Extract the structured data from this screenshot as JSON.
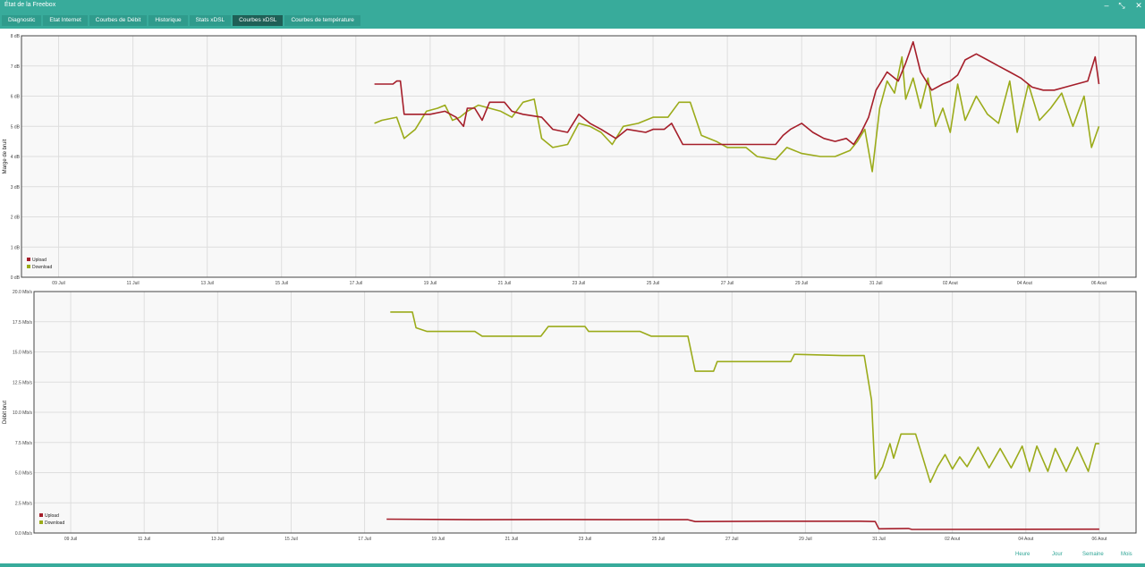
{
  "window": {
    "title": "État de la Freebox"
  },
  "tabs": [
    "Diagnostic",
    "Etat Internet",
    "Courbes de Débit",
    "Historique",
    "Stats xDSL",
    "Courbes xDSL",
    "Courbes de température"
  ],
  "active_tab": 5,
  "range_buttons": [
    "Heure",
    "Jour",
    "Semaine",
    "Mois"
  ],
  "colors": {
    "upload": "#a51e2a",
    "download": "#9bab1a",
    "accent": "#38ab9b"
  },
  "chart_data": [
    {
      "type": "line",
      "ylabel": "Marge de bruit",
      "ylim": [
        0,
        8
      ],
      "yticks": [
        "0 dB",
        "1 dB",
        "2 dB",
        "3 dB",
        "4 dB",
        "5 dB",
        "6 dB",
        "7 dB",
        "8 dB"
      ],
      "x_tick_labels": [
        "09 Juil",
        "11 Juil",
        "13 Juil",
        "15 Juil",
        "17 Juil",
        "19 Juil",
        "21 Juil",
        "23 Juil",
        "25 Juil",
        "27 Juil",
        "29 Juil",
        "31 Juil",
        "02 Aout",
        "04 Aout",
        "06 Aout"
      ],
      "legend_position": "bottom-left",
      "grid": true,
      "series": [
        {
          "name": "Upload",
          "color": "#a51e2a",
          "points": [
            [
              17.5,
              6.4
            ],
            [
              18.0,
              6.4
            ],
            [
              18.1,
              6.5
            ],
            [
              18.2,
              6.5
            ],
            [
              18.3,
              5.4
            ],
            [
              19.0,
              5.4
            ],
            [
              19.4,
              5.5
            ],
            [
              19.7,
              5.3
            ],
            [
              19.9,
              5.0
            ],
            [
              20.0,
              5.6
            ],
            [
              20.2,
              5.6
            ],
            [
              20.4,
              5.2
            ],
            [
              20.6,
              5.8
            ],
            [
              21.0,
              5.8
            ],
            [
              21.2,
              5.5
            ],
            [
              21.5,
              5.4
            ],
            [
              22.0,
              5.3
            ],
            [
              22.3,
              4.9
            ],
            [
              22.7,
              4.8
            ],
            [
              23.0,
              5.4
            ],
            [
              23.3,
              5.1
            ],
            [
              23.6,
              4.9
            ],
            [
              24.0,
              4.6
            ],
            [
              24.3,
              4.9
            ],
            [
              24.8,
              4.8
            ],
            [
              25.0,
              4.9
            ],
            [
              25.3,
              4.9
            ],
            [
              25.5,
              5.1
            ],
            [
              25.8,
              4.4
            ],
            [
              26.5,
              4.4
            ],
            [
              27.0,
              4.4
            ],
            [
              27.5,
              4.4
            ],
            [
              28.0,
              4.4
            ],
            [
              28.3,
              4.4
            ],
            [
              28.5,
              4.7
            ],
            [
              28.7,
              4.9
            ],
            [
              29.0,
              5.1
            ],
            [
              29.3,
              4.8
            ],
            [
              29.6,
              4.6
            ],
            [
              29.9,
              4.5
            ],
            [
              30.2,
              4.6
            ],
            [
              30.4,
              4.4
            ],
            [
              30.6,
              4.8
            ],
            [
              30.8,
              5.3
            ],
            [
              31.0,
              6.2
            ],
            [
              31.3,
              6.8
            ],
            [
              31.6,
              6.5
            ],
            [
              31.8,
              7.1
            ],
            [
              32.0,
              7.8
            ],
            [
              32.2,
              6.8
            ],
            [
              32.5,
              6.2
            ],
            [
              32.8,
              6.4
            ],
            [
              33.0,
              6.5
            ],
            [
              33.2,
              6.7
            ],
            [
              33.4,
              7.2
            ],
            [
              33.7,
              7.4
            ],
            [
              34.0,
              7.2
            ],
            [
              34.3,
              7.0
            ],
            [
              34.6,
              6.8
            ],
            [
              34.9,
              6.6
            ],
            [
              35.2,
              6.3
            ],
            [
              35.5,
              6.2
            ],
            [
              35.8,
              6.2
            ],
            [
              36.1,
              6.3
            ],
            [
              36.4,
              6.4
            ],
            [
              36.7,
              6.5
            ],
            [
              36.9,
              7.3
            ],
            [
              37.0,
              6.4
            ]
          ]
        },
        {
          "name": "Download",
          "color": "#9bab1a",
          "points": [
            [
              17.5,
              5.1
            ],
            [
              17.7,
              5.2
            ],
            [
              18.1,
              5.3
            ],
            [
              18.3,
              4.6
            ],
            [
              18.6,
              4.9
            ],
            [
              18.9,
              5.5
            ],
            [
              19.2,
              5.6
            ],
            [
              19.4,
              5.7
            ],
            [
              19.6,
              5.2
            ],
            [
              19.8,
              5.3
            ],
            [
              20.0,
              5.5
            ],
            [
              20.3,
              5.7
            ],
            [
              20.6,
              5.6
            ],
            [
              20.9,
              5.5
            ],
            [
              21.2,
              5.3
            ],
            [
              21.5,
              5.8
            ],
            [
              21.8,
              5.9
            ],
            [
              22.0,
              4.6
            ],
            [
              22.3,
              4.3
            ],
            [
              22.7,
              4.4
            ],
            [
              23.0,
              5.1
            ],
            [
              23.3,
              5.0
            ],
            [
              23.6,
              4.8
            ],
            [
              23.9,
              4.4
            ],
            [
              24.2,
              5.0
            ],
            [
              24.6,
              5.1
            ],
            [
              25.0,
              5.3
            ],
            [
              25.4,
              5.3
            ],
            [
              25.7,
              5.8
            ],
            [
              26.0,
              5.8
            ],
            [
              26.3,
              4.7
            ],
            [
              26.7,
              4.5
            ],
            [
              27.0,
              4.3
            ],
            [
              27.5,
              4.3
            ],
            [
              27.8,
              4.0
            ],
            [
              28.3,
              3.9
            ],
            [
              28.6,
              4.3
            ],
            [
              29.0,
              4.1
            ],
            [
              29.5,
              4.0
            ],
            [
              29.9,
              4.0
            ],
            [
              30.3,
              4.2
            ],
            [
              30.5,
              4.5
            ],
            [
              30.7,
              4.9
            ],
            [
              30.9,
              3.5
            ],
            [
              31.1,
              5.6
            ],
            [
              31.3,
              6.5
            ],
            [
              31.5,
              6.1
            ],
            [
              31.7,
              7.3
            ],
            [
              31.8,
              5.9
            ],
            [
              32.0,
              6.6
            ],
            [
              32.2,
              5.6
            ],
            [
              32.4,
              6.6
            ],
            [
              32.6,
              5.0
            ],
            [
              32.8,
              5.6
            ],
            [
              33.0,
              4.8
            ],
            [
              33.2,
              6.4
            ],
            [
              33.4,
              5.2
            ],
            [
              33.7,
              6.0
            ],
            [
              34.0,
              5.4
            ],
            [
              34.3,
              5.1
            ],
            [
              34.6,
              6.5
            ],
            [
              34.8,
              4.8
            ],
            [
              35.1,
              6.4
            ],
            [
              35.4,
              5.2
            ],
            [
              35.7,
              5.6
            ],
            [
              36.0,
              6.1
            ],
            [
              36.3,
              5.0
            ],
            [
              36.6,
              6.0
            ],
            [
              36.8,
              4.3
            ],
            [
              37.0,
              5.0
            ]
          ]
        }
      ]
    },
    {
      "type": "line",
      "ylabel": "Débit brut",
      "ylim": [
        0,
        20
      ],
      "yticks": [
        "0.0 Mb/s",
        "2.5 Mb/s",
        "5.0 Mb/s",
        "7.5 Mb/s",
        "10.0 Mb/s",
        "12.5 Mb/s",
        "15.0 Mb/s",
        "17.5 Mb/s",
        "20.0 Mb/s"
      ],
      "x_tick_labels": [
        "09 Juil",
        "11 Juil",
        "13 Juil",
        "15 Juil",
        "17 Juil",
        "19 Juil",
        "21 Juil",
        "23 Juil",
        "25 Juil",
        "27 Juil",
        "29 Juil",
        "31 Juil",
        "02 Aout",
        "04 Aout",
        "06 Aout"
      ],
      "legend_position": "bottom-left",
      "grid": true,
      "series": [
        {
          "name": "Upload",
          "color": "#a51e2a",
          "points": [
            [
              17.6,
              1.15
            ],
            [
              20.0,
              1.1
            ],
            [
              22.0,
              1.12
            ],
            [
              24.0,
              1.1
            ],
            [
              25.8,
              1.1
            ],
            [
              26.0,
              0.95
            ],
            [
              28.0,
              0.98
            ],
            [
              30.5,
              0.98
            ],
            [
              30.9,
              0.95
            ],
            [
              31.0,
              0.35
            ],
            [
              31.8,
              0.38
            ],
            [
              31.9,
              0.3
            ],
            [
              37.0,
              0.32
            ]
          ]
        },
        {
          "name": "Download",
          "color": "#9bab1a",
          "points": [
            [
              17.7,
              18.3
            ],
            [
              18.3,
              18.3
            ],
            [
              18.4,
              17.0
            ],
            [
              18.7,
              16.7
            ],
            [
              20.0,
              16.7
            ],
            [
              20.2,
              16.3
            ],
            [
              21.5,
              16.3
            ],
            [
              21.8,
              16.3
            ],
            [
              22.0,
              17.1
            ],
            [
              23.0,
              17.1
            ],
            [
              23.1,
              16.7
            ],
            [
              24.5,
              16.7
            ],
            [
              24.8,
              16.3
            ],
            [
              25.8,
              16.3
            ],
            [
              26.0,
              13.4
            ],
            [
              26.5,
              13.4
            ],
            [
              26.6,
              14.2
            ],
            [
              28.0,
              14.2
            ],
            [
              28.6,
              14.2
            ],
            [
              28.7,
              14.8
            ],
            [
              30.0,
              14.7
            ],
            [
              30.6,
              14.7
            ],
            [
              30.8,
              11.0
            ],
            [
              30.9,
              4.5
            ],
            [
              31.1,
              5.5
            ],
            [
              31.3,
              7.4
            ],
            [
              31.4,
              6.2
            ],
            [
              31.6,
              8.2
            ],
            [
              32.0,
              8.2
            ],
            [
              32.4,
              4.2
            ],
            [
              32.6,
              5.5
            ],
            [
              32.8,
              6.5
            ],
            [
              33.0,
              5.3
            ],
            [
              33.2,
              6.3
            ],
            [
              33.4,
              5.5
            ],
            [
              33.7,
              7.1
            ],
            [
              34.0,
              5.4
            ],
            [
              34.3,
              7.0
            ],
            [
              34.6,
              5.4
            ],
            [
              34.9,
              7.2
            ],
            [
              35.1,
              5.1
            ],
            [
              35.3,
              7.2
            ],
            [
              35.6,
              5.1
            ],
            [
              35.8,
              7.0
            ],
            [
              36.1,
              5.1
            ],
            [
              36.4,
              7.1
            ],
            [
              36.7,
              5.1
            ],
            [
              36.9,
              7.4
            ],
            [
              37.0,
              7.4
            ]
          ]
        }
      ]
    }
  ]
}
